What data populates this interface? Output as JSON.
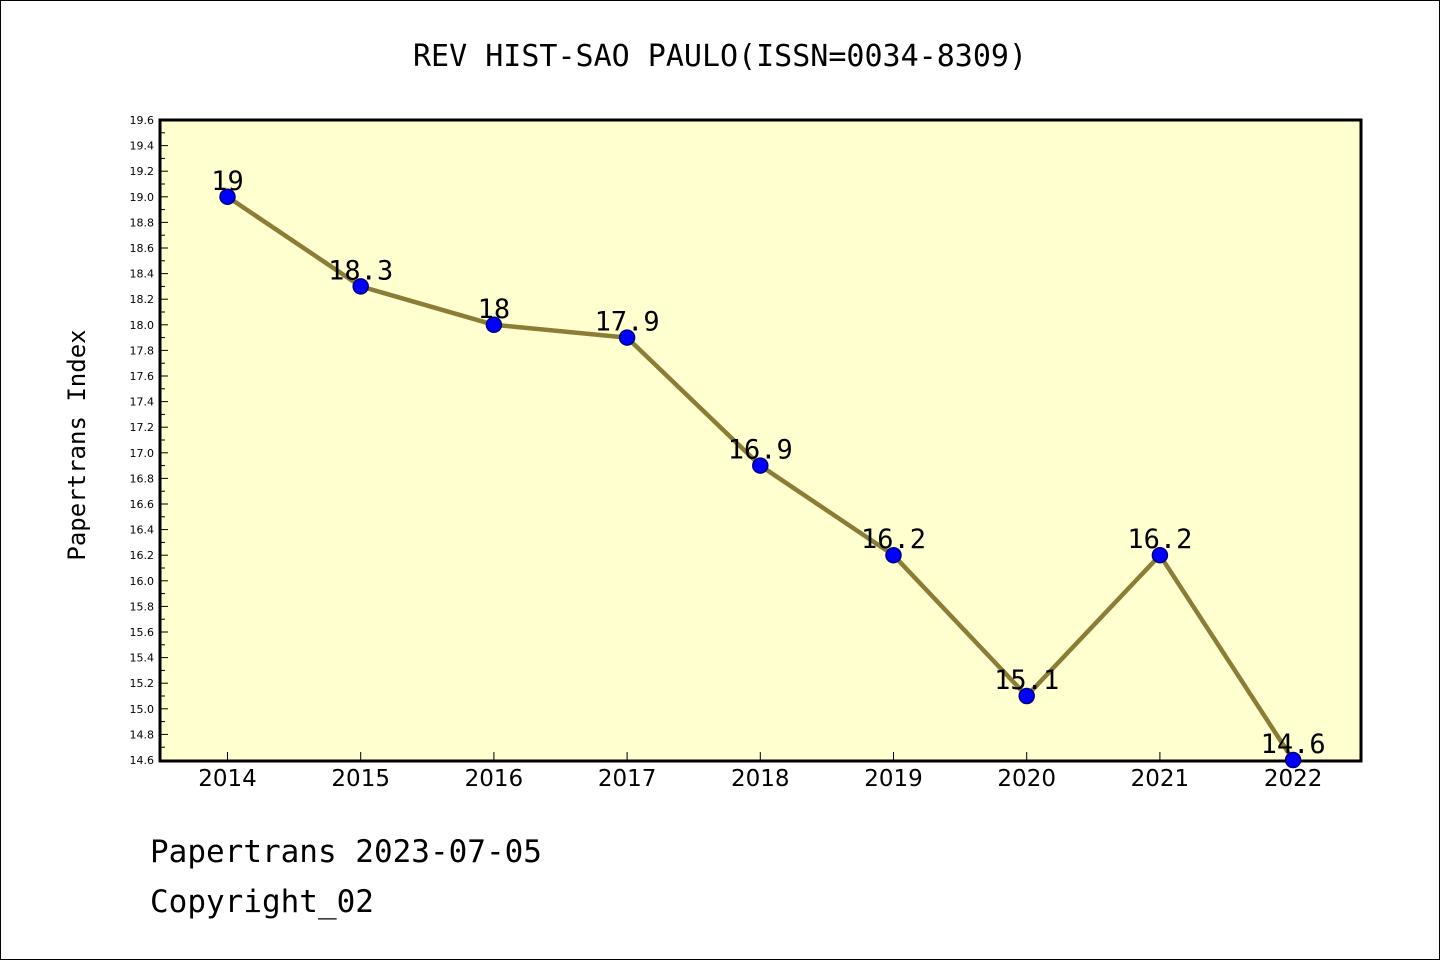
{
  "chart_data": {
    "type": "line",
    "title": "REV HIST-SAO PAULO(ISSN=0034-8309)",
    "xlabel": "",
    "ylabel": "Papertrans Index",
    "categories": [
      "2014",
      "2015",
      "2016",
      "2017",
      "2018",
      "2019",
      "2020",
      "2021",
      "2022"
    ],
    "series": [
      {
        "values": [
          19,
          18.3,
          18,
          17.9,
          16.9,
          16.2,
          15.1,
          16.2,
          14.6
        ],
        "data_labels": [
          "19",
          "18.3",
          "18",
          "17.9",
          "16.9",
          "16.2",
          "15.1",
          "16.2",
          "14.6"
        ]
      }
    ],
    "ylim": [
      14.6,
      19.6
    ],
    "yticks": [
      "14.6",
      "14.8",
      "15.0",
      "15.2",
      "15.4",
      "15.6",
      "15.8",
      "16.0",
      "16.2",
      "16.4",
      "16.6",
      "16.8",
      "17.0",
      "17.2",
      "17.4",
      "17.6",
      "17.8",
      "18.0",
      "18.2",
      "18.4",
      "18.6",
      "18.8",
      "19.0",
      "19.2",
      "19.4",
      "19.6"
    ],
    "grid": false,
    "legend": "none",
    "colors": {
      "plot_background": "#ffffd0",
      "line": "#8b7d35",
      "marker_fill": "#0000ff",
      "marker_edge": "#000080",
      "axes": "#000000"
    }
  },
  "footer": {
    "date_line": "Papertrans 2023-07-05",
    "copyright": "Copyright_02"
  }
}
